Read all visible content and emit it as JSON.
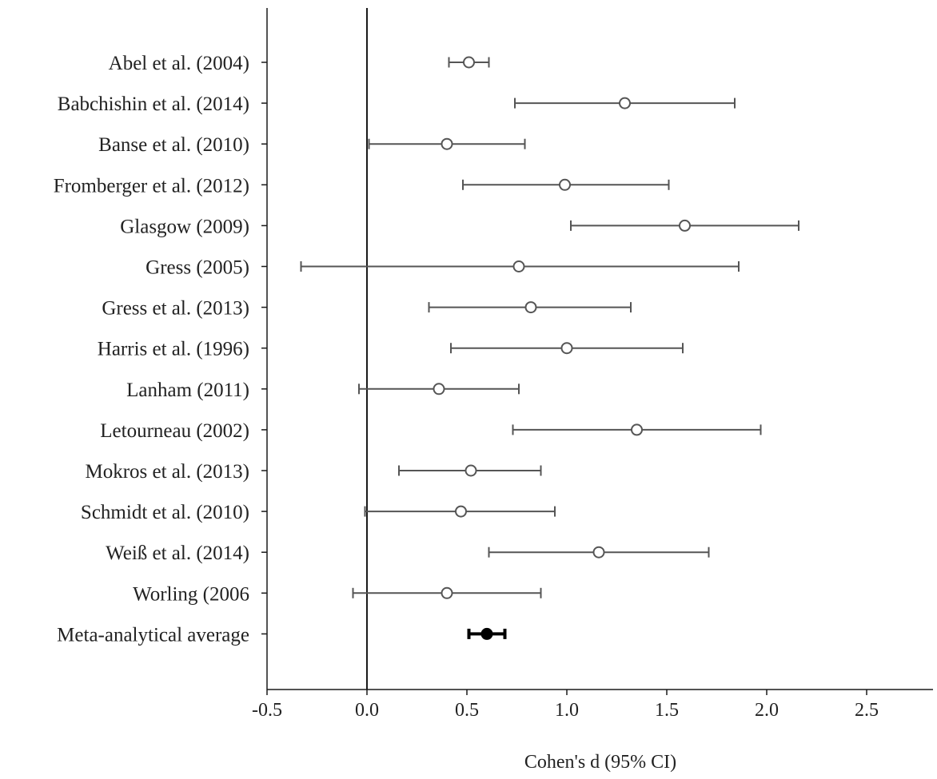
{
  "chart_data": {
    "type": "forest",
    "title": "",
    "xlabel": "Cohen's d (95% CI)",
    "ylabel": "",
    "xlim": [
      -0.5,
      2.85
    ],
    "xticks": [
      -0.5,
      0.0,
      0.5,
      1.0,
      1.5,
      2.0,
      2.5
    ],
    "xtick_labels": [
      "-0.5",
      "0.0",
      "0.5",
      "1.0",
      "1.5",
      "2.0",
      "2.5"
    ],
    "reference_line": 0.0,
    "grid": false,
    "legend": "none",
    "studies": [
      {
        "label": "Abel et al. (2004)",
        "d": 0.51,
        "lower": 0.41,
        "upper": 0.61,
        "marker": "open-circle"
      },
      {
        "label": "Babchishin et al. (2014)",
        "d": 1.29,
        "lower": 0.74,
        "upper": 1.84,
        "marker": "open-circle"
      },
      {
        "label": "Banse et al. (2010)",
        "d": 0.4,
        "lower": 0.01,
        "upper": 0.79,
        "marker": "open-circle"
      },
      {
        "label": "Fromberger et al. (2012)",
        "d": 0.99,
        "lower": 0.48,
        "upper": 1.51,
        "marker": "open-circle"
      },
      {
        "label": "Glasgow (2009)",
        "d": 1.59,
        "lower": 1.02,
        "upper": 2.16,
        "marker": "open-circle"
      },
      {
        "label": "Gress (2005)",
        "d": 0.76,
        "lower": -0.33,
        "upper": 1.86,
        "marker": "open-circle"
      },
      {
        "label": "Gress et al. (2013)",
        "d": 0.82,
        "lower": 0.31,
        "upper": 1.32,
        "marker": "open-circle"
      },
      {
        "label": "Harris et al. (1996)",
        "d": 1.0,
        "lower": 0.42,
        "upper": 1.58,
        "marker": "open-circle"
      },
      {
        "label": "Lanham (2011)",
        "d": 0.36,
        "lower": -0.04,
        "upper": 0.76,
        "marker": "open-circle"
      },
      {
        "label": "Letourneau (2002)",
        "d": 1.35,
        "lower": 0.73,
        "upper": 1.97,
        "marker": "open-circle"
      },
      {
        "label": "Mokros et al. (2013)",
        "d": 0.52,
        "lower": 0.16,
        "upper": 0.87,
        "marker": "open-circle"
      },
      {
        "label": "Schmidt et al. (2010)",
        "d": 0.47,
        "lower": -0.01,
        "upper": 0.94,
        "marker": "open-circle"
      },
      {
        "label": "Weiß et al. (2014)",
        "d": 1.16,
        "lower": 0.61,
        "upper": 1.71,
        "marker": "open-circle"
      },
      {
        "label": "Worling (2006",
        "d": 0.4,
        "lower": -0.07,
        "upper": 0.87,
        "marker": "open-circle"
      },
      {
        "label": "Meta-analytical average",
        "d": 0.6,
        "lower": 0.51,
        "upper": 0.69,
        "marker": "filled-circle"
      }
    ]
  },
  "colors": {
    "background": "#ffffff",
    "axis": "#1a1a1a",
    "error_bar": "#555555",
    "marker_open": "#555555",
    "marker_filled": "#000000",
    "text": "#222222"
  }
}
